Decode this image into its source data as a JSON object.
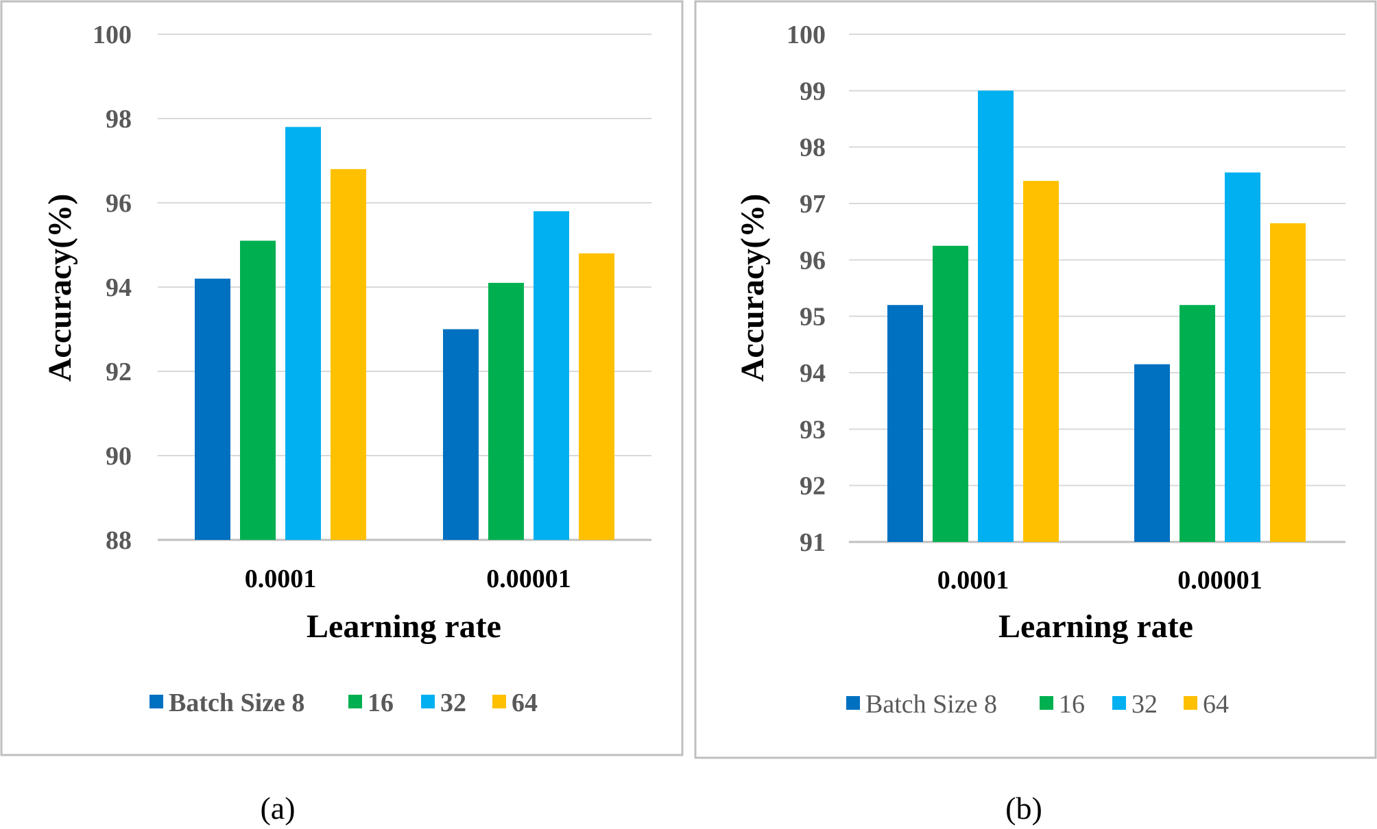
{
  "colors": {
    "batch8": "#0070C0",
    "batch16": "#00B050",
    "batch32": "#00B0F0",
    "batch64": "#FFC000",
    "grid": "#D9D9D9",
    "frame": "#BFBFBF"
  },
  "chart_data": [
    {
      "type": "bar",
      "caption": "(a)",
      "xlabel": "Learning rate",
      "ylabel": "Accuracy(%)",
      "categories": [
        "0.0001",
        "0.00001"
      ],
      "ylim": [
        88,
        100
      ],
      "yticks": [
        88,
        90,
        92,
        94,
        96,
        98,
        100
      ],
      "tick_labels": [
        "88",
        "90",
        "92",
        "94",
        "96",
        "98",
        "100"
      ],
      "legend_position": "bottom",
      "series": [
        {
          "name": "Batch Size 8",
          "values": [
            94.2,
            93.0
          ]
        },
        {
          "name": "16",
          "values": [
            95.1,
            94.1
          ]
        },
        {
          "name": "32",
          "values": [
            97.8,
            95.8
          ]
        },
        {
          "name": "64",
          "values": [
            96.8,
            94.8
          ]
        }
      ]
    },
    {
      "type": "bar",
      "caption": "(b)",
      "xlabel": "Learning rate",
      "ylabel": "Accuracy(%)",
      "categories": [
        "0.0001",
        "0.00001"
      ],
      "ylim": [
        91,
        100
      ],
      "yticks": [
        91,
        92,
        93,
        94,
        95,
        96,
        97,
        98,
        99,
        100
      ],
      "tick_labels": [
        "91",
        "92",
        "93",
        "94",
        "95",
        "96",
        "97",
        "98",
        "99",
        "100"
      ],
      "legend_position": "bottom",
      "series": [
        {
          "name": "Batch Size 8",
          "values": [
            95.2,
            94.15
          ]
        },
        {
          "name": "16",
          "values": [
            96.25,
            95.2
          ]
        },
        {
          "name": "32",
          "values": [
            99.0,
            97.55
          ]
        },
        {
          "name": "64",
          "values": [
            97.4,
            96.65
          ]
        }
      ]
    }
  ]
}
